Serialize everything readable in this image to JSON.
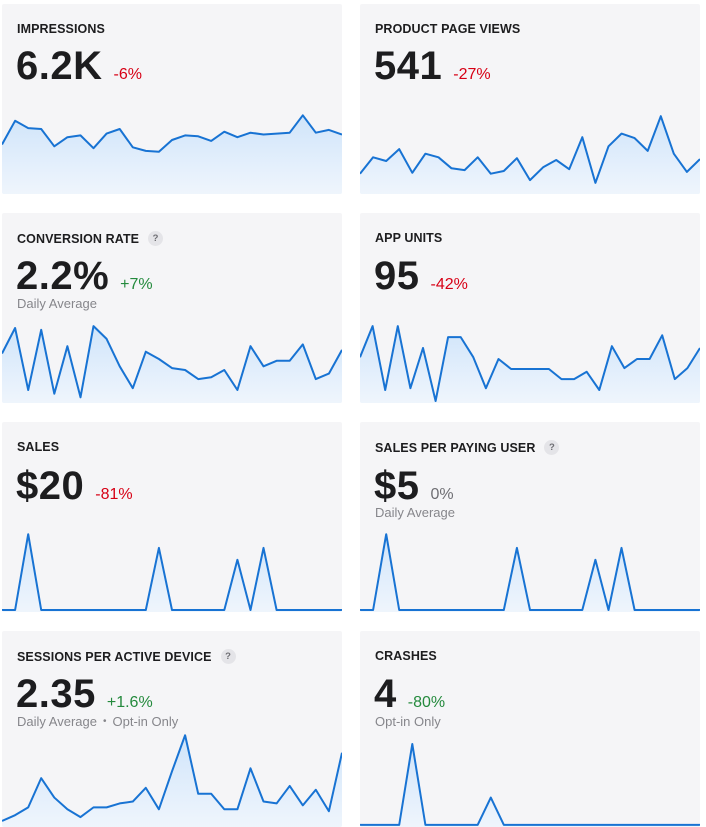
{
  "colors": {
    "card_bg": "#f5f5f7",
    "line": "#1873d3",
    "negative": "#d70015",
    "positive": "#248a3d",
    "neutral": "#6e6e73"
  },
  "cards": [
    {
      "title": "IMPRESSIONS",
      "value": "6.2K",
      "change": "-6%",
      "trend": "negative",
      "help": false,
      "spark": [
        52,
        78,
        70,
        69,
        50,
        60,
        62,
        48,
        64,
        69,
        49,
        45,
        44,
        57,
        62,
        61,
        56,
        66,
        60,
        65,
        63,
        64,
        65,
        84,
        65,
        68,
        63
      ]
    },
    {
      "title": "PRODUCT PAGE VIEWS",
      "value": "541",
      "change": "-27%",
      "trend": "negative",
      "help": false,
      "spark": [
        20,
        38,
        34,
        47,
        21,
        42,
        38,
        26,
        24,
        38,
        20,
        23,
        37,
        13,
        27,
        35,
        25,
        60,
        10,
        50,
        64,
        59,
        45,
        83,
        42,
        22,
        36
      ]
    },
    {
      "title": "CONVERSION RATE",
      "help_icon": "?",
      "value": "2.2%",
      "change": "+7%",
      "trend": "positive",
      "subtitle": "Daily Average",
      "spark": [
        52,
        80,
        12,
        78,
        8,
        60,
        4,
        82,
        68,
        38,
        14,
        54,
        46,
        36,
        34,
        24,
        26,
        34,
        12,
        60,
        38,
        44,
        44,
        62,
        24,
        30,
        56
      ]
    },
    {
      "title": "APP UNITS",
      "value": "95",
      "change": "-42%",
      "trend": "negative",
      "spark": [
        48,
        82,
        12,
        82,
        14,
        58,
        0,
        70,
        70,
        48,
        14,
        46,
        35,
        35,
        35,
        35,
        24,
        24,
        32,
        12,
        60,
        36,
        46,
        46,
        72,
        24,
        36,
        58
      ]
    },
    {
      "title": "SALES",
      "value": "$20",
      "change": "-81%",
      "trend": "negative",
      "spark": [
        0,
        0,
        83,
        0,
        0,
        0,
        0,
        0,
        0,
        0,
        0,
        0,
        68,
        0,
        0,
        0,
        0,
        0,
        55,
        0,
        68,
        0,
        0,
        0,
        0,
        0,
        0
      ]
    },
    {
      "title": "SALES PER PAYING USER",
      "help_icon": "?",
      "value": "$5",
      "change": "0%",
      "trend": "neutral",
      "subtitle": "Daily Average",
      "spark": [
        0,
        0,
        83,
        0,
        0,
        0,
        0,
        0,
        0,
        0,
        0,
        0,
        68,
        0,
        0,
        0,
        0,
        0,
        55,
        0,
        68,
        0,
        0,
        0,
        0,
        0,
        0
      ]
    },
    {
      "title": "SESSIONS PER ACTIVE DEVICE",
      "help_icon": "?",
      "value": "2.35",
      "change": "+1.6%",
      "trend": "positive",
      "subtitle": "Daily Average",
      "subtitle_extra": "Opt-in Only",
      "spark": [
        4,
        10,
        18,
        48,
        28,
        16,
        8,
        18,
        18,
        22,
        24,
        38,
        16,
        55,
        92,
        32,
        32,
        16,
        16,
        58,
        24,
        22,
        40,
        20,
        36,
        14,
        74
      ]
    },
    {
      "title": "CRASHES",
      "value": "4",
      "change": "-80%",
      "trend": "positive",
      "subtitle": "Opt-in Only",
      "spark": [
        0,
        0,
        0,
        0,
        83,
        0,
        0,
        0,
        0,
        0,
        28,
        0,
        0,
        0,
        0,
        0,
        0,
        0,
        0,
        0,
        0,
        0,
        0,
        0,
        0,
        0,
        0
      ]
    }
  ]
}
